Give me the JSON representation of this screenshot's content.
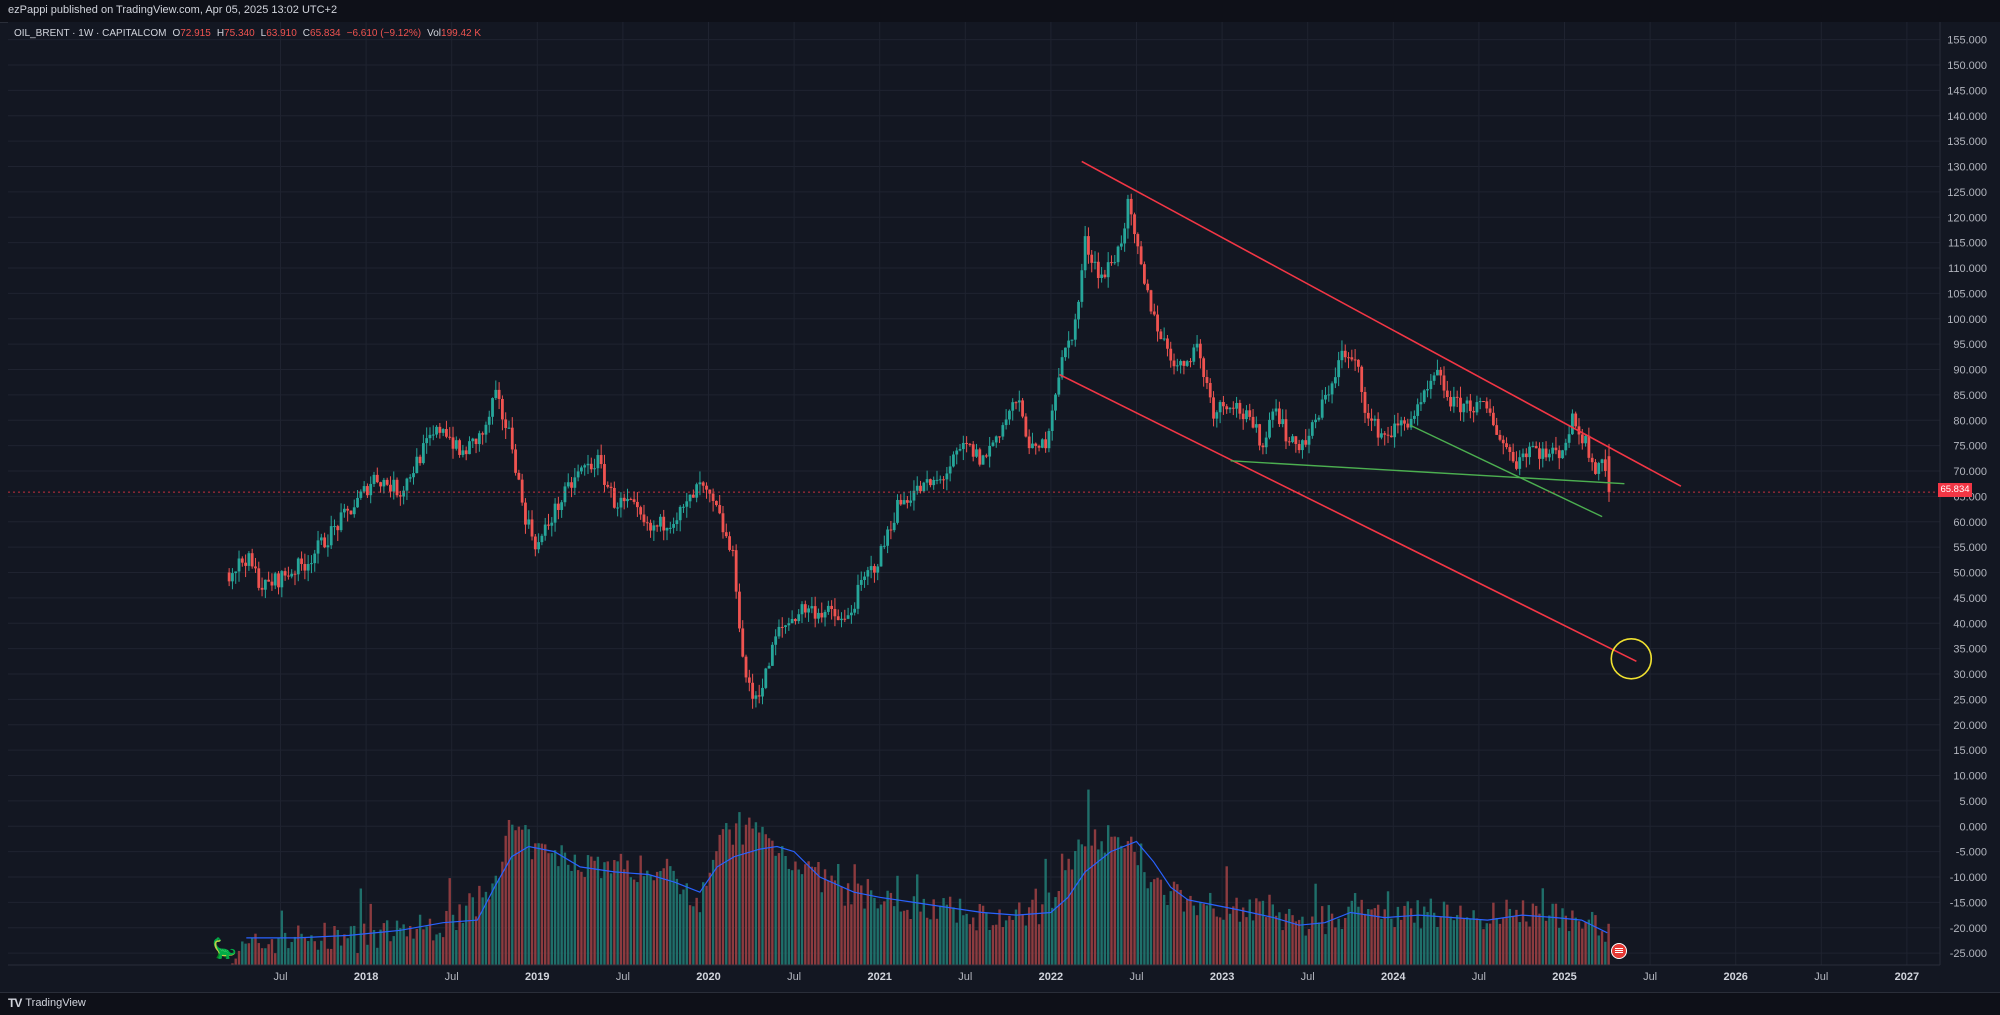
{
  "header": {
    "published": "ezPappi published on TradingView.com, Apr 05, 2025 13:02 UTC+2"
  },
  "legend": {
    "symbol": "OIL_BRENT · 1W · CAPITALCOM",
    "open_label": "O",
    "open": "72.915",
    "high_label": "H",
    "high": "75.340",
    "low_label": "L",
    "low": "63.910",
    "close_label": "C",
    "close": "65.834",
    "change": "−6.610 (−9.12%)",
    "vol_label": "Vol",
    "vol": "199.42 K"
  },
  "last_price_label": "65.834",
  "footer": {
    "brand": "TradingView",
    "logo_mark": "TV"
  },
  "colors": {
    "up": "#26a69a",
    "down": "#ef5350",
    "channel": "#f23645",
    "support": "#4caf50",
    "vol_ma": "#2962ff",
    "target": "#f0e130",
    "bg": "#131722"
  },
  "chart_data": {
    "type": "candlestick",
    "title": "OIL_BRENT · 1W · CAPITALCOM",
    "ylim": [
      -27.5,
      157.5
    ],
    "y_ticks": [
      155,
      150,
      145,
      140,
      135,
      130,
      125,
      120,
      115,
      110,
      105,
      100,
      95,
      90,
      85,
      80,
      75,
      70,
      65,
      60,
      55,
      50,
      45,
      40,
      35,
      30,
      25,
      20,
      15,
      10,
      5,
      0,
      -5,
      -10,
      -15,
      -20,
      -25
    ],
    "x_ticks": [
      {
        "label": "Jul",
        "t": 2017.5,
        "year": false
      },
      {
        "label": "2018",
        "t": 2018.0,
        "year": true
      },
      {
        "label": "Jul",
        "t": 2018.5,
        "year": false
      },
      {
        "label": "2019",
        "t": 2019.0,
        "year": true
      },
      {
        "label": "Jul",
        "t": 2019.5,
        "year": false
      },
      {
        "label": "2020",
        "t": 2020.0,
        "year": true
      },
      {
        "label": "Jul",
        "t": 2020.5,
        "year": false
      },
      {
        "label": "2021",
        "t": 2021.0,
        "year": true
      },
      {
        "label": "Jul",
        "t": 2021.5,
        "year": false
      },
      {
        "label": "2022",
        "t": 2022.0,
        "year": true
      },
      {
        "label": "Jul",
        "t": 2022.5,
        "year": false
      },
      {
        "label": "2023",
        "t": 2023.0,
        "year": true
      },
      {
        "label": "Jul",
        "t": 2023.5,
        "year": false
      },
      {
        "label": "2024",
        "t": 2024.0,
        "year": true
      },
      {
        "label": "Jul",
        "t": 2024.5,
        "year": false
      },
      {
        "label": "2025",
        "t": 2025.0,
        "year": true
      },
      {
        "label": "Jul",
        "t": 2025.5,
        "year": false
      },
      {
        "label": "2026",
        "t": 2026.0,
        "year": true
      },
      {
        "label": "Jul",
        "t": 2026.5,
        "year": false
      },
      {
        "label": "2027",
        "t": 2027.0,
        "year": true
      }
    ],
    "price_path": [
      [
        2017.2,
        50
      ],
      [
        2017.3,
        53
      ],
      [
        2017.4,
        47
      ],
      [
        2017.5,
        49
      ],
      [
        2017.65,
        52
      ],
      [
        2017.8,
        58
      ],
      [
        2017.95,
        64
      ],
      [
        2018.05,
        69
      ],
      [
        2018.2,
        66
      ],
      [
        2018.35,
        75
      ],
      [
        2018.45,
        79
      ],
      [
        2018.55,
        73
      ],
      [
        2018.7,
        78
      ],
      [
        2018.75,
        85
      ],
      [
        2018.85,
        76
      ],
      [
        2018.92,
        62
      ],
      [
        2019.0,
        55
      ],
      [
        2019.1,
        62
      ],
      [
        2019.25,
        70
      ],
      [
        2019.35,
        72
      ],
      [
        2019.45,
        64
      ],
      [
        2019.55,
        63
      ],
      [
        2019.65,
        58
      ],
      [
        2019.75,
        60
      ],
      [
        2019.85,
        62
      ],
      [
        2019.95,
        67
      ],
      [
        2020.05,
        62
      ],
      [
        2020.15,
        52
      ],
      [
        2020.2,
        33
      ],
      [
        2020.25,
        25
      ],
      [
        2020.32,
        28
      ],
      [
        2020.4,
        38
      ],
      [
        2020.55,
        43
      ],
      [
        2020.7,
        42
      ],
      [
        2020.8,
        40
      ],
      [
        2020.9,
        48
      ],
      [
        2021.0,
        53
      ],
      [
        2021.1,
        63
      ],
      [
        2021.2,
        66
      ],
      [
        2021.35,
        68
      ],
      [
        2021.5,
        75
      ],
      [
        2021.6,
        72
      ],
      [
        2021.7,
        78
      ],
      [
        2021.8,
        84
      ],
      [
        2021.9,
        73
      ],
      [
        2021.97,
        76
      ],
      [
        2022.05,
        90
      ],
      [
        2022.15,
        100
      ],
      [
        2022.2,
        115
      ],
      [
        2022.3,
        108
      ],
      [
        2022.4,
        114
      ],
      [
        2022.45,
        122
      ],
      [
        2022.55,
        106
      ],
      [
        2022.65,
        96
      ],
      [
        2022.75,
        90
      ],
      [
        2022.85,
        95
      ],
      [
        2022.95,
        82
      ],
      [
        2023.05,
        84
      ],
      [
        2023.15,
        80
      ],
      [
        2023.25,
        75
      ],
      [
        2023.3,
        84
      ],
      [
        2023.4,
        75
      ],
      [
        2023.5,
        76
      ],
      [
        2023.6,
        84
      ],
      [
        2023.7,
        93
      ],
      [
        2023.8,
        90
      ],
      [
        2023.85,
        80
      ],
      [
        2023.95,
        77
      ],
      [
        2024.05,
        79
      ],
      [
        2024.15,
        82
      ],
      [
        2024.25,
        89
      ],
      [
        2024.35,
        83
      ],
      [
        2024.45,
        83
      ],
      [
        2024.55,
        82
      ],
      [
        2024.65,
        75
      ],
      [
        2024.72,
        72
      ],
      [
        2024.8,
        75
      ],
      [
        2024.9,
        73
      ],
      [
        2024.98,
        74
      ],
      [
        2025.05,
        80
      ],
      [
        2025.12,
        76
      ],
      [
        2025.18,
        71
      ],
      [
        2025.22,
        73
      ],
      [
        2025.26,
        65.8
      ]
    ],
    "volume_path": [
      [
        2017.2,
        -25.5
      ],
      [
        2017.5,
        -22
      ],
      [
        2018.0,
        -22
      ],
      [
        2018.5,
        -19
      ],
      [
        2018.72,
        -13
      ],
      [
        2018.85,
        0
      ],
      [
        2019.0,
        -5
      ],
      [
        2019.25,
        -7
      ],
      [
        2019.5,
        -8
      ],
      [
        2019.75,
        -9
      ],
      [
        2019.95,
        -14
      ],
      [
        2020.05,
        -3
      ],
      [
        2020.25,
        0
      ],
      [
        2020.4,
        -4
      ],
      [
        2020.6,
        -9
      ],
      [
        2020.85,
        -14
      ],
      [
        2021.0,
        -15
      ],
      [
        2021.25,
        -15.5
      ],
      [
        2021.5,
        -17.5
      ],
      [
        2021.75,
        -18
      ],
      [
        2021.9,
        -17.5
      ],
      [
        2022.05,
        -12
      ],
      [
        2022.2,
        -1
      ],
      [
        2022.45,
        -4
      ],
      [
        2022.6,
        -12
      ],
      [
        2022.8,
        -14.5
      ],
      [
        2023.0,
        -15.5
      ],
      [
        2023.25,
        -17
      ],
      [
        2023.5,
        -19.5
      ],
      [
        2023.75,
        -17
      ],
      [
        2024.0,
        -18
      ],
      [
        2024.25,
        -17
      ],
      [
        2024.5,
        -18
      ],
      [
        2024.75,
        -17
      ],
      [
        2025.0,
        -18
      ],
      [
        2025.25,
        -20
      ]
    ],
    "volume_ma": [
      [
        2017.3,
        -22
      ],
      [
        2017.6,
        -22
      ],
      [
        2017.9,
        -21.5
      ],
      [
        2018.2,
        -20.5
      ],
      [
        2018.45,
        -19
      ],
      [
        2018.65,
        -18.5
      ],
      [
        2018.75,
        -12
      ],
      [
        2018.85,
        -6
      ],
      [
        2018.95,
        -4
      ],
      [
        2019.1,
        -5
      ],
      [
        2019.25,
        -8
      ],
      [
        2019.45,
        -9
      ],
      [
        2019.65,
        -9.5
      ],
      [
        2019.8,
        -11
      ],
      [
        2019.95,
        -13
      ],
      [
        2020.05,
        -8
      ],
      [
        2020.15,
        -6
      ],
      [
        2020.3,
        -4.5
      ],
      [
        2020.4,
        -4
      ],
      [
        2020.5,
        -5
      ],
      [
        2020.65,
        -10
      ],
      [
        2020.85,
        -13
      ],
      [
        2021.0,
        -14
      ],
      [
        2021.2,
        -15
      ],
      [
        2021.4,
        -16
      ],
      [
        2021.6,
        -17
      ],
      [
        2021.8,
        -17.5
      ],
      [
        2022.0,
        -17
      ],
      [
        2022.1,
        -14
      ],
      [
        2022.2,
        -9
      ],
      [
        2022.35,
        -5
      ],
      [
        2022.5,
        -3
      ],
      [
        2022.6,
        -7
      ],
      [
        2022.7,
        -12
      ],
      [
        2022.8,
        -14.5
      ],
      [
        2022.95,
        -15.5
      ],
      [
        2023.1,
        -16.5
      ],
      [
        2023.3,
        -18
      ],
      [
        2023.45,
        -19.5
      ],
      [
        2023.6,
        -19
      ],
      [
        2023.75,
        -17
      ],
      [
        2023.95,
        -18
      ],
      [
        2024.15,
        -17.5
      ],
      [
        2024.35,
        -18
      ],
      [
        2024.55,
        -18.5
      ],
      [
        2024.75,
        -17.5
      ],
      [
        2024.95,
        -18
      ],
      [
        2025.1,
        -18.5
      ],
      [
        2025.25,
        -21
      ]
    ],
    "drawings": {
      "channel_upper": [
        [
          2022.18,
          131
        ],
        [
          2025.68,
          67
        ]
      ],
      "channel_lower": [
        [
          2022.05,
          89
        ],
        [
          2025.42,
          32.5
        ]
      ],
      "support_flat": [
        [
          2023.05,
          72
        ],
        [
          2025.35,
          67.5
        ]
      ],
      "support_falling": [
        [
          2024.1,
          79
        ],
        [
          2025.22,
          61
        ]
      ],
      "last_price": 65.834,
      "target_circle": {
        "t": 2025.39,
        "price": 33
      }
    }
  }
}
